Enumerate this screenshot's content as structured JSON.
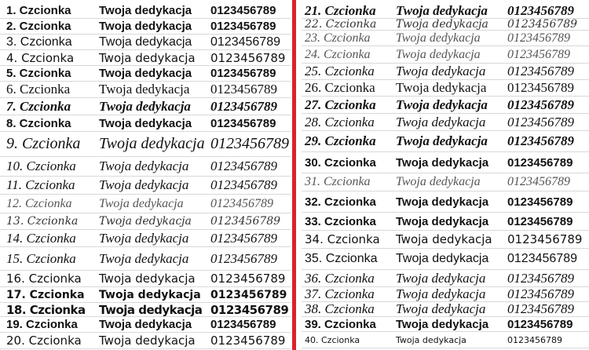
{
  "accent_divider_color": "#d9232d",
  "left_rows": [
    {
      "name": "1. Czcionka",
      "dedication": "Twoja dedykacja",
      "digits": "0123456789"
    },
    {
      "name": "2. Czcionka",
      "dedication": "Twoja dedykacja",
      "digits": "0123456789"
    },
    {
      "name": "3. Czcionka",
      "dedication": "Twoja dedykacja",
      "digits": "0123456789"
    },
    {
      "name": "4. Czcionka",
      "dedication": "Twoja dedykacja",
      "digits": "0123456789"
    },
    {
      "name": "5. Czcionka",
      "dedication": "Twoja dedykacja",
      "digits": "0123456789"
    },
    {
      "name": "6. Czcionka",
      "dedication": "Twoja dedykacja",
      "digits": "0123456789"
    },
    {
      "name": "7. Czcionka",
      "dedication": "Twoja dedykacja",
      "digits": "0123456789"
    },
    {
      "name": "8. Czcionka",
      "dedication": "Twoja dedykacja",
      "digits": "0123456789"
    },
    {
      "name": "9. Czcionka",
      "dedication": "Twoja dedykacja",
      "digits": "0123456789"
    },
    {
      "name": "10. Czcionka",
      "dedication": "Twoja dedykacja",
      "digits": "0123456789"
    },
    {
      "name": "11. Czcionka",
      "dedication": "Twoja dedykacja",
      "digits": "0123456789"
    },
    {
      "name": "12. Czcionka",
      "dedication": "Twoja dedykacja",
      "digits": "0123456789"
    },
    {
      "name": "13. Czcionka",
      "dedication": "Twoja dedykacja",
      "digits": "0123456789"
    },
    {
      "name": "14. Czcionka",
      "dedication": "Twoja dedykacja",
      "digits": "0123456789"
    },
    {
      "name": "15. Czcionka",
      "dedication": "Twoja dedykacja",
      "digits": "0123456789"
    },
    {
      "name": "16. Czcionka",
      "dedication": "Twoja dedykacja",
      "digits": "0123456789"
    },
    {
      "name": "17. Czcionka",
      "dedication": "Twoja dedykacja",
      "digits": "0123456789"
    },
    {
      "name": "18. Czcionka",
      "dedication": "Twoja dedykacja",
      "digits": "0123456789"
    },
    {
      "name": "19. Czcionka",
      "dedication": "Twoja dedykacja",
      "digits": "0123456789"
    },
    {
      "name": "20. Czcionka",
      "dedication": "Twoja dedykacja",
      "digits": "0123456789"
    }
  ],
  "right_rows": [
    {
      "name": "21. Czcionka",
      "dedication": "Twoja dedykacja",
      "digits": "0123456789"
    },
    {
      "name": "22. Czcionka",
      "dedication": "Twoja dedykacja",
      "digits": "0123456789"
    },
    {
      "name": "23. Czcionka",
      "dedication": "Twoja dedykacja",
      "digits": "0123456789"
    },
    {
      "name": "24. Czcionka",
      "dedication": "Twoja dedykacja",
      "digits": "0123456789"
    },
    {
      "name": "25. Czcionka",
      "dedication": "Twoja dedykacja",
      "digits": "0123456789"
    },
    {
      "name": "26. Czcionka",
      "dedication": "Twoja dedykacja",
      "digits": "0123456789"
    },
    {
      "name": "27. Czcionka",
      "dedication": "Twoja dedykacja",
      "digits": "0123456789"
    },
    {
      "name": "28. Czcionka",
      "dedication": "Twoja dedykacja",
      "digits": "0123456789"
    },
    {
      "name": "29. Czcionka",
      "dedication": "Twoja dedykacja",
      "digits": "0123456789"
    },
    {
      "name": "30. Czcionka",
      "dedication": "Twoja dedykacja",
      "digits": "0123456789"
    },
    {
      "name": "31. Czcionka",
      "dedication": "Twoja dedykacja",
      "digits": "0123456789"
    },
    {
      "name": "32. Czcionka",
      "dedication": "Twoja dedykacja",
      "digits": "0123456789"
    },
    {
      "name": "33. Czcionka",
      "dedication": "Twoja dedykacja",
      "digits": "0123456789"
    },
    {
      "name": "34. Czcionka",
      "dedication": "Twoja dedykacja",
      "digits": "0123456789"
    },
    {
      "name": "35. Czcionka",
      "dedication": "Twoja dedykacja",
      "digits": "0123456789"
    },
    {
      "name": "36. Czcionka",
      "dedication": "Twoja dedykacja",
      "digits": "0123456789"
    },
    {
      "name": "37. Czcionka",
      "dedication": "Twoja dedykacja",
      "digits": "0123456789"
    },
    {
      "name": "38. Czcionka",
      "dedication": "Twoja dedykacja",
      "digits": "0123456789"
    },
    {
      "name": "39. Czcionka",
      "dedication": "Twoja dedykacja",
      "digits": "0123456789"
    },
    {
      "name": "40. Czcionka",
      "dedication": "Twoja dedykacja",
      "digits": "0123456789"
    }
  ]
}
